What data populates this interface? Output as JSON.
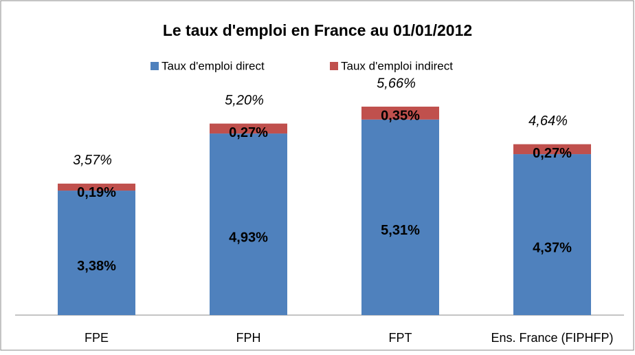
{
  "chart_data": {
    "type": "stacked_bar",
    "title": "Le taux d'emploi en France au 01/01/2012",
    "categories": [
      "FPE",
      "FPH",
      "FPT",
      "Ens. France (FIPHFP)"
    ],
    "series": [
      {
        "name": "Taux d'emploi direct",
        "color": "#4f81bd",
        "values": [
          3.38,
          4.93,
          5.31,
          4.37
        ],
        "value_labels": [
          "3,38%",
          "4,93%",
          "5,31%",
          "4,37%"
        ]
      },
      {
        "name": "Taux d'emploi indirect",
        "color": "#c0504d",
        "values": [
          0.19,
          0.27,
          0.35,
          0.27
        ],
        "value_labels": [
          "0,19%",
          "0,27%",
          "0,35%",
          "0,27%"
        ]
      }
    ],
    "total_labels": [
      "3,57%",
      "5,20%",
      "5,66%",
      "4,64%"
    ],
    "legend": "top"
  }
}
